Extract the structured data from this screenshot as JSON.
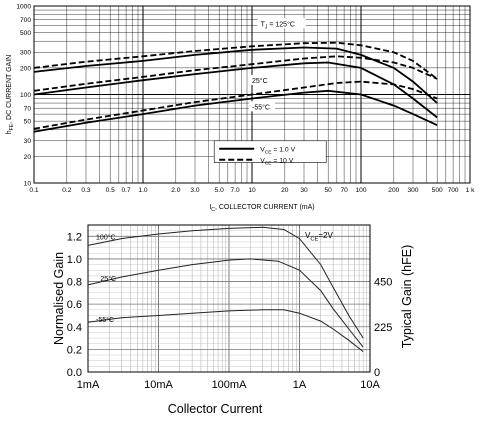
{
  "chart_data": [
    {
      "type": "line",
      "x_scale": "log",
      "y_scale": "log",
      "xlim": [
        0.1,
        1000
      ],
      "ylim": [
        10,
        1000
      ],
      "xlabel_prefix": "I",
      "xlabel_sub": "C",
      "xlabel_rest": ", COLLECTOR CURRENT (mA)",
      "ylabel_prefix": "h",
      "ylabel_sub": "FE",
      "ylabel_rest": ", DC CURRENT GAIN",
      "x_tick_labels": [
        {
          "v": 0.1,
          "t": "0.1"
        },
        {
          "v": 0.2,
          "t": "0.2"
        },
        {
          "v": 0.3,
          "t": "0.3"
        },
        {
          "v": 0.5,
          "t": "0.5"
        },
        {
          "v": 0.7,
          "t": "0.7"
        },
        {
          "v": 1,
          "t": "1.0"
        },
        {
          "v": 2,
          "t": "2.0"
        },
        {
          "v": 3,
          "t": "3.0"
        },
        {
          "v": 5,
          "t": "5.0"
        },
        {
          "v": 7,
          "t": "7.0"
        },
        {
          "v": 10,
          "t": "10"
        },
        {
          "v": 20,
          "t": "20"
        },
        {
          "v": 30,
          "t": "30"
        },
        {
          "v": 50,
          "t": "50"
        },
        {
          "v": 70,
          "t": "70"
        },
        {
          "v": 100,
          "t": "100"
        },
        {
          "v": 200,
          "t": "200"
        },
        {
          "v": 300,
          "t": "300"
        },
        {
          "v": 500,
          "t": "500"
        },
        {
          "v": 700,
          "t": "700"
        },
        {
          "v": 1000,
          "t": "1 k"
        }
      ],
      "y_tick_labels": [
        {
          "v": 10,
          "t": "10"
        },
        {
          "v": 20,
          "t": "20"
        },
        {
          "v": 30,
          "t": "30"
        },
        {
          "v": 50,
          "t": "50"
        },
        {
          "v": 70,
          "t": "70"
        },
        {
          "v": 100,
          "t": "100"
        },
        {
          "v": 200,
          "t": "200"
        },
        {
          "v": 300,
          "t": "300"
        },
        {
          "v": 500,
          "t": "500"
        },
        {
          "v": 700,
          "t": "700"
        },
        {
          "v": 1000,
          "t": "1000"
        }
      ],
      "annotations": [
        {
          "label": "T",
          "sub": "J",
          "rest": " = 125°C",
          "x": 12,
          "y": 590
        },
        {
          "label": "25°C",
          "sub": "",
          "rest": "",
          "x": 10,
          "y": 135
        },
        {
          "label": "-55°C",
          "sub": "",
          "rest": "",
          "x": 10,
          "y": 68
        }
      ],
      "legend": [
        {
          "prefix": "V",
          "sub": "CE",
          "rest": " = 1.0 V",
          "style": "solid"
        },
        {
          "prefix": "V",
          "sub": "CE",
          "rest": " = 10 V",
          "style": "dashed"
        }
      ],
      "series": [
        {
          "temp": "125",
          "style": "solid",
          "x": [
            0.1,
            0.3,
            1,
            3,
            10,
            30,
            60,
            100,
            200,
            300,
            500
          ],
          "y": [
            180,
            210,
            240,
            280,
            320,
            340,
            330,
            280,
            200,
            140,
            80
          ]
        },
        {
          "temp": "125",
          "style": "dashed",
          "x": [
            0.1,
            0.3,
            1,
            3,
            10,
            30,
            60,
            100,
            200,
            300,
            500
          ],
          "y": [
            200,
            235,
            270,
            310,
            350,
            380,
            385,
            360,
            300,
            240,
            150
          ]
        },
        {
          "temp": "25",
          "style": "solid",
          "x": [
            0.1,
            0.3,
            1,
            3,
            10,
            30,
            50,
            100,
            200,
            300,
            500
          ],
          "y": [
            100,
            120,
            145,
            170,
            200,
            225,
            230,
            200,
            130,
            90,
            55
          ]
        },
        {
          "temp": "25",
          "style": "dashed",
          "x": [
            0.1,
            0.3,
            1,
            3,
            10,
            30,
            60,
            100,
            200,
            300,
            500
          ],
          "y": [
            110,
            132,
            158,
            188,
            220,
            255,
            270,
            260,
            230,
            200,
            150
          ]
        },
        {
          "temp": "-55",
          "style": "solid",
          "x": [
            0.1,
            0.3,
            1,
            3,
            10,
            30,
            50,
            100,
            200,
            300,
            500
          ],
          "y": [
            38,
            48,
            60,
            75,
            90,
            105,
            110,
            100,
            75,
            60,
            45
          ]
        },
        {
          "temp": "-55",
          "style": "dashed",
          "x": [
            0.1,
            0.3,
            1,
            3,
            10,
            30,
            60,
            100,
            200,
            300,
            500
          ],
          "y": [
            41,
            52,
            66,
            82,
            100,
            120,
            135,
            140,
            130,
            115,
            90
          ]
        }
      ]
    },
    {
      "type": "line",
      "x_scale": "log",
      "xlim": [
        0.001,
        10
      ],
      "ylim": [
        0,
        1.3
      ],
      "xlabel": "Collector Current",
      "ylabel_left": "Normalised Gain",
      "ylabel_right": "Typical Gain  (hFE)",
      "x_tick_labels": [
        {
          "v": 0.001,
          "t": "1mA"
        },
        {
          "v": 0.01,
          "t": "10mA"
        },
        {
          "v": 0.1,
          "t": "100mA"
        },
        {
          "v": 1,
          "t": "1A"
        },
        {
          "v": 10,
          "t": "10A"
        }
      ],
      "y_tick_labels": [
        {
          "v": 0,
          "t": "0.0"
        },
        {
          "v": 0.2,
          "t": "0.2"
        },
        {
          "v": 0.4,
          "t": "0.4"
        },
        {
          "v": 0.6,
          "t": "0.6"
        },
        {
          "v": 0.8,
          "t": "0.8"
        },
        {
          "v": 1.0,
          "t": "1.0"
        },
        {
          "v": 1.2,
          "t": "1.2"
        }
      ],
      "right_tick_labels": [
        {
          "v": 0,
          "t": "0"
        },
        {
          "v": 0.4,
          "t": "225"
        },
        {
          "v": 0.8,
          "t": "450"
        }
      ],
      "condition": {
        "prefix": "V",
        "sub": "CE",
        "rest": "=2V"
      },
      "annotations": [
        {
          "label": "100°C",
          "x": 0.0013,
          "y": 1.2
        },
        {
          "label": "25°C",
          "x": 0.0015,
          "y": 0.83
        },
        {
          "label": "-55°C",
          "x": 0.0013,
          "y": 0.47
        }
      ],
      "series": [
        {
          "name": "100°C",
          "x": [
            0.001,
            0.003,
            0.01,
            0.03,
            0.1,
            0.3,
            0.6,
            1,
            2,
            3,
            5,
            8
          ],
          "y": [
            1.12,
            1.18,
            1.22,
            1.25,
            1.27,
            1.28,
            1.26,
            1.18,
            0.95,
            0.75,
            0.5,
            0.3
          ]
        },
        {
          "name": "25°C",
          "x": [
            0.001,
            0.003,
            0.01,
            0.03,
            0.1,
            0.2,
            0.5,
            1,
            2,
            3,
            5,
            8
          ],
          "y": [
            0.77,
            0.84,
            0.9,
            0.95,
            0.99,
            1.0,
            0.98,
            0.9,
            0.72,
            0.56,
            0.38,
            0.22
          ]
        },
        {
          "name": "-55°C",
          "x": [
            0.001,
            0.003,
            0.01,
            0.03,
            0.1,
            0.3,
            0.6,
            1,
            2,
            3,
            5,
            8
          ],
          "y": [
            0.44,
            0.48,
            0.5,
            0.52,
            0.54,
            0.55,
            0.55,
            0.52,
            0.45,
            0.38,
            0.28,
            0.18
          ]
        }
      ]
    }
  ]
}
